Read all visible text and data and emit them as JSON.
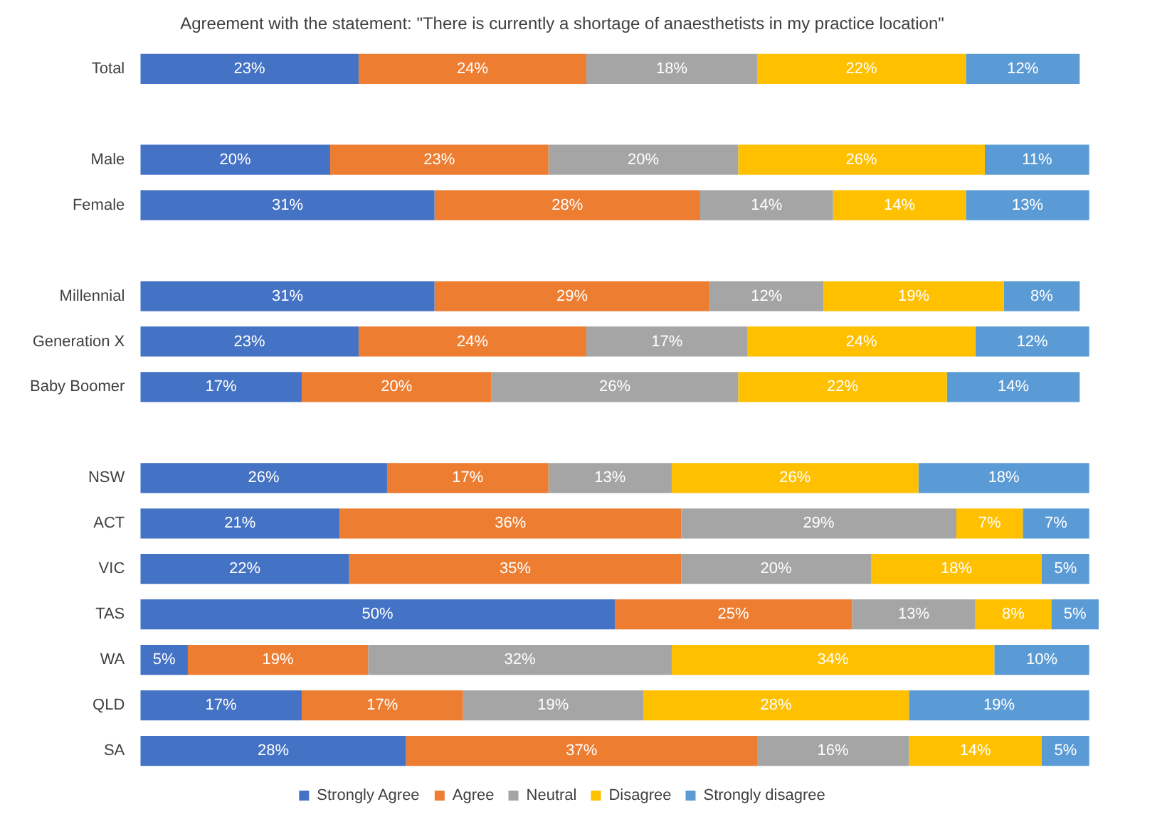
{
  "chart_data": {
    "type": "bar",
    "orientation": "horizontal",
    "stacked": true,
    "title": "Agreement with the statement: \"There is currently a shortage of anaesthetists in my practice location\"",
    "categories": [
      "Total",
      null,
      "Male",
      "Female",
      null,
      "Millennial",
      "Generation X",
      "Baby Boomer",
      null,
      "NSW",
      "ACT",
      "VIC",
      "TAS",
      "WA",
      "QLD",
      "SA"
    ],
    "xlim": [
      0,
      101
    ],
    "tick_labels": "y",
    "legend": "bottom",
    "series": [
      {
        "name": "Strongly Agree",
        "color": "#4472c4",
        "values": [
          23,
          null,
          20,
          31,
          null,
          31,
          23,
          17,
          null,
          26,
          21,
          22,
          50,
          5,
          17,
          28
        ],
        "value_labels": [
          "23%",
          null,
          "20%",
          "31%",
          null,
          "31%",
          "23%",
          "17%",
          null,
          "26%",
          "21%",
          "22%",
          "50%",
          "5%",
          "17%",
          "28%"
        ]
      },
      {
        "name": "Agree",
        "color": "#ed7d31",
        "values": [
          24,
          null,
          23,
          28,
          null,
          29,
          24,
          20,
          null,
          17,
          36,
          35,
          25,
          19,
          17,
          37
        ],
        "value_labels": [
          "24%",
          null,
          "23%",
          "28%",
          null,
          "29%",
          "24%",
          "20%",
          null,
          "17%",
          "36%",
          "35%",
          "25%",
          "19%",
          "17%",
          "37%"
        ]
      },
      {
        "name": "Neutral",
        "color": "#a5a5a5",
        "values": [
          18,
          null,
          20,
          14,
          null,
          12,
          17,
          26,
          null,
          13,
          29,
          20,
          13,
          32,
          19,
          16
        ],
        "value_labels": [
          "18%",
          null,
          "20%",
          "14%",
          null,
          "12%",
          "17%",
          "26%",
          null,
          "13%",
          "29%",
          "20%",
          "13%",
          "32%",
          "19%",
          "16%"
        ]
      },
      {
        "name": "Disagree",
        "color": "#ffc000",
        "values": [
          22,
          null,
          26,
          14,
          null,
          19,
          24,
          22,
          null,
          26,
          7,
          18,
          8,
          34,
          28,
          14
        ],
        "value_labels": [
          "22%",
          null,
          "26%",
          "14%",
          null,
          "19%",
          "24%",
          "22%",
          null,
          "26%",
          "7%",
          "18%",
          "8%",
          "34%",
          "28%",
          "14%"
        ]
      },
      {
        "name": "Strongly disagree",
        "color": "#5b9bd5",
        "values": [
          12,
          null,
          11,
          13,
          null,
          8,
          12,
          14,
          null,
          18,
          7,
          5,
          5,
          10,
          19,
          5
        ],
        "value_labels": [
          "12%",
          null,
          "11%",
          "13%",
          null,
          "8%",
          "12%",
          "14%",
          null,
          "18%",
          "7%",
          "5%",
          "5%",
          "10%",
          "19%",
          "5%"
        ]
      }
    ]
  }
}
